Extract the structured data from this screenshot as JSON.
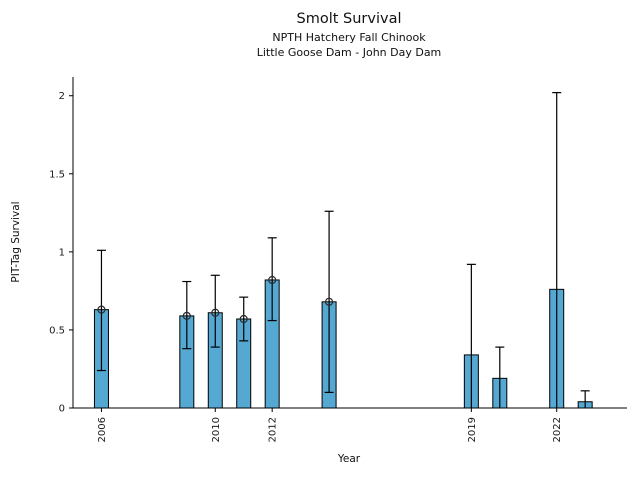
{
  "chart_data": {
    "type": "bar",
    "title": "Smolt Survival",
    "subtitle1": "NPTH Hatchery Fall Chinook",
    "subtitle2": "Little Goose Dam - John Day Dam",
    "xlabel": "Year",
    "ylabel": "PIT-Tag Survival",
    "xlim": [
      2005,
      2024.4
    ],
    "ylim": [
      0,
      2.12
    ],
    "grid": false,
    "legend": "none",
    "yticks": [
      0,
      0.5,
      1,
      1.5,
      2
    ],
    "ytick_labels": [
      "0",
      "0.5",
      "1",
      "1.5",
      "2"
    ],
    "xticks": [
      2006,
      2010,
      2012,
      2019,
      2022
    ],
    "xtick_labels": [
      "2006",
      "2010",
      "2012",
      "2019",
      "2022"
    ],
    "bar_color": "#55a8d2",
    "bar_edge_color": "#000000",
    "error_color": "#000000",
    "marker_style": "open-circle",
    "bars": [
      {
        "year": 2006,
        "value": 0.63,
        "ci_low": 0.24,
        "ci_high": 1.01,
        "marker": true
      },
      {
        "year": 2009,
        "value": 0.59,
        "ci_low": 0.38,
        "ci_high": 0.81,
        "marker": true
      },
      {
        "year": 2010,
        "value": 0.61,
        "ci_low": 0.39,
        "ci_high": 0.85,
        "marker": true
      },
      {
        "year": 2011,
        "value": 0.57,
        "ci_low": 0.43,
        "ci_high": 0.71,
        "marker": true
      },
      {
        "year": 2012,
        "value": 0.82,
        "ci_low": 0.56,
        "ci_high": 1.09,
        "marker": true
      },
      {
        "year": 2014,
        "value": 0.68,
        "ci_low": 0.1,
        "ci_high": 1.26,
        "marker": true
      },
      {
        "year": 2019,
        "value": 0.34,
        "ci_low": 0.0,
        "ci_high": 0.92,
        "marker": false
      },
      {
        "year": 2020,
        "value": 0.19,
        "ci_low": 0.0,
        "ci_high": 0.39,
        "marker": false
      },
      {
        "year": 2022,
        "value": 0.76,
        "ci_low": 0.0,
        "ci_high": 2.02,
        "marker": false
      },
      {
        "year": 2023,
        "value": 0.04,
        "ci_low": 0.0,
        "ci_high": 0.11,
        "marker": false
      }
    ]
  }
}
